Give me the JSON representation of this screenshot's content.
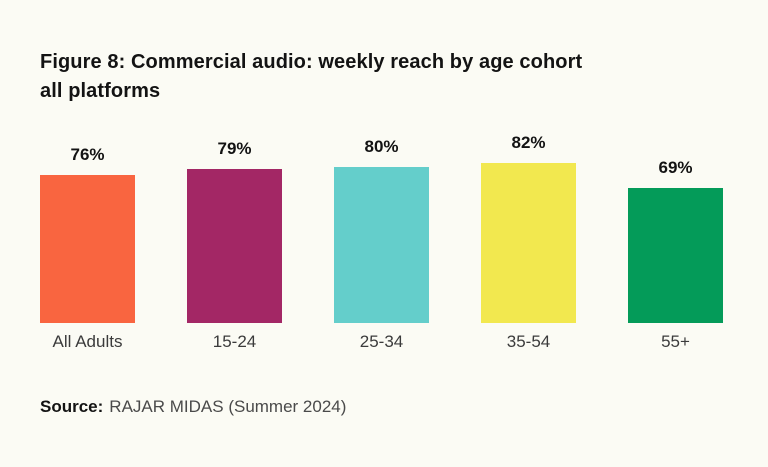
{
  "figure": {
    "title_line1": "Figure 8: Commercial audio: weekly reach by age cohort",
    "title_line2": "all platforms",
    "source_label": "Source:",
    "source_text": "RAJAR MIDAS (Summer 2024)"
  },
  "chart_data": {
    "type": "bar",
    "title": "Figure 8: Commercial audio: weekly reach by age cohort all platforms",
    "categories": [
      "All Adults",
      "15-24",
      "25-34",
      "35-54",
      "55+"
    ],
    "values": [
      76,
      79,
      80,
      82,
      69
    ],
    "value_labels": [
      "76%",
      "79%",
      "80%",
      "82%",
      "69%"
    ],
    "bar_colors": [
      "#F96540",
      "#A32765",
      "#64CECB",
      "#F2E84F",
      "#049B59"
    ],
    "xlabel": "",
    "ylabel": "",
    "ylim": [
      0,
      100
    ],
    "grid": false,
    "legend": "none",
    "data_labels": "above-bars",
    "source": "RAJAR MIDAS (Summer 2024)"
  },
  "colors": {
    "background": "#FBFBF4",
    "title_text": "#131313",
    "category_text": "#3B3B3B",
    "source_text": "#4A4A4A"
  }
}
